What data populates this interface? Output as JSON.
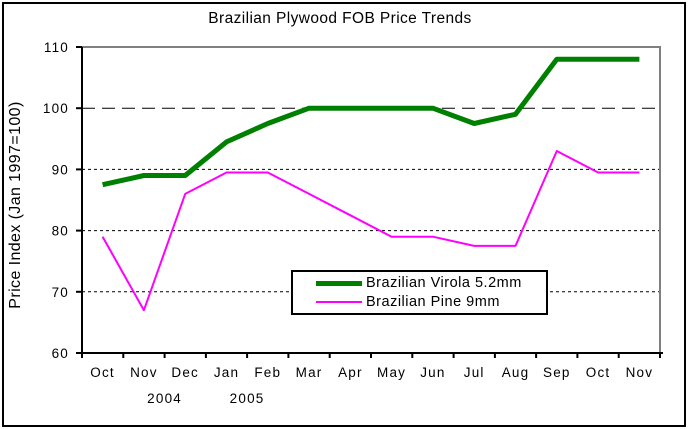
{
  "chart_data": {
    "type": "line",
    "title": "Brazilian Plywood FOB Price Trends",
    "ylabel": "Price Index (Jan 1997=100)",
    "xlabel": "",
    "categories": [
      "Oct",
      "Nov",
      "Dec",
      "Jan",
      "Feb",
      "Mar",
      "Apr",
      "May",
      "Jun",
      "Jul",
      "Aug",
      "Sep",
      "Oct",
      "Nov"
    ],
    "year_labels": [
      {
        "text": "2004",
        "boundary_index": 2
      },
      {
        "text": "2005",
        "boundary_index": 4
      }
    ],
    "ylim": [
      60,
      110
    ],
    "yticks": [
      60,
      70,
      80,
      90,
      100,
      110
    ],
    "reference_level": 100,
    "grid": "horizontal black dashed lines; index-100 line long-dashed",
    "legend_position": "inside bottom-center, boxed",
    "plot_border_color": "#808080",
    "axis_color": "#000000",
    "series": [
      {
        "name": "Brazilian Virola 5.2mm",
        "color": "#008000",
        "line_width": 5,
        "values": [
          87.5,
          89,
          89,
          94.5,
          97.5,
          100,
          100,
          100,
          100,
          97.5,
          99,
          108,
          108,
          108
        ]
      },
      {
        "name": "Brazilian Pine 9mm",
        "color": "#FF00FF",
        "line_width": 2,
        "values": [
          79,
          67,
          86,
          89.5,
          89.5,
          86,
          82.5,
          79,
          79,
          77.5,
          77.5,
          93,
          89.5,
          89.5
        ]
      }
    ]
  }
}
